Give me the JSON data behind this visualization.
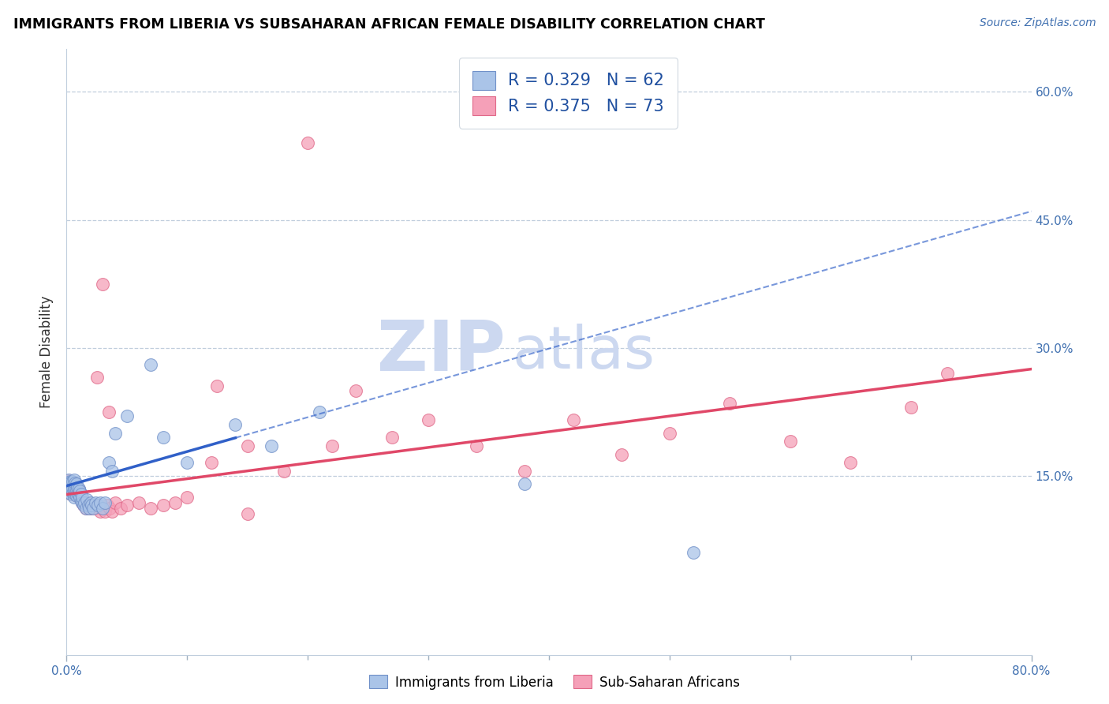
{
  "title": "IMMIGRANTS FROM LIBERIA VS SUBSAHARAN AFRICAN FEMALE DISABILITY CORRELATION CHART",
  "source": "Source: ZipAtlas.com",
  "ylabel": "Female Disability",
  "series1_label": "Immigrants from Liberia",
  "series2_label": "Sub-Saharan Africans",
  "series1_R": "0.329",
  "series1_N": "62",
  "series2_R": "0.375",
  "series2_N": "73",
  "series1_color": "#aac4e8",
  "series2_color": "#f5a0b8",
  "series1_edge_color": "#7090c8",
  "series2_edge_color": "#e06888",
  "trend1_color": "#3060c8",
  "trend2_color": "#e04868",
  "watermark_color": "#ccd8f0",
  "background_color": "#ffffff",
  "xlim": [
    0.0,
    0.8
  ],
  "ylim": [
    -0.06,
    0.65
  ],
  "ytick_vals": [
    0.15,
    0.3,
    0.45,
    0.6
  ],
  "ytick_labels": [
    "15.0%",
    "30.0%",
    "45.0%",
    "60.0%"
  ],
  "trend1_x0": 0.0,
  "trend1_y0": 0.138,
  "trend1_x1": 0.8,
  "trend1_y1": 0.46,
  "trend1_solid_end": 0.14,
  "trend2_x0": 0.0,
  "trend2_y0": 0.128,
  "trend2_x1": 0.8,
  "trend2_y1": 0.275,
  "series1_x": [
    0.001,
    0.001,
    0.001,
    0.002,
    0.002,
    0.002,
    0.002,
    0.003,
    0.003,
    0.003,
    0.004,
    0.004,
    0.004,
    0.005,
    0.005,
    0.005,
    0.006,
    0.006,
    0.006,
    0.006,
    0.007,
    0.007,
    0.007,
    0.008,
    0.008,
    0.008,
    0.009,
    0.009,
    0.01,
    0.01,
    0.011,
    0.011,
    0.012,
    0.012,
    0.013,
    0.013,
    0.014,
    0.015,
    0.016,
    0.017,
    0.018,
    0.019,
    0.02,
    0.021,
    0.022,
    0.024,
    0.026,
    0.028,
    0.03,
    0.032,
    0.035,
    0.038,
    0.04,
    0.05,
    0.07,
    0.08,
    0.1,
    0.14,
    0.17,
    0.21,
    0.38,
    0.52
  ],
  "series1_y": [
    0.135,
    0.138,
    0.142,
    0.13,
    0.135,
    0.14,
    0.145,
    0.132,
    0.138,
    0.143,
    0.128,
    0.135,
    0.142,
    0.13,
    0.136,
    0.143,
    0.125,
    0.132,
    0.138,
    0.145,
    0.128,
    0.135,
    0.141,
    0.127,
    0.133,
    0.14,
    0.129,
    0.136,
    0.128,
    0.135,
    0.125,
    0.132,
    0.12,
    0.128,
    0.118,
    0.125,
    0.115,
    0.118,
    0.112,
    0.122,
    0.115,
    0.112,
    0.118,
    0.115,
    0.112,
    0.118,
    0.115,
    0.118,
    0.112,
    0.118,
    0.165,
    0.155,
    0.2,
    0.22,
    0.28,
    0.195,
    0.165,
    0.21,
    0.185,
    0.225,
    0.14,
    0.06
  ],
  "series2_x": [
    0.001,
    0.001,
    0.002,
    0.002,
    0.002,
    0.003,
    0.003,
    0.004,
    0.004,
    0.005,
    0.005,
    0.005,
    0.006,
    0.006,
    0.007,
    0.007,
    0.008,
    0.008,
    0.009,
    0.009,
    0.01,
    0.01,
    0.011,
    0.012,
    0.013,
    0.014,
    0.015,
    0.016,
    0.017,
    0.018,
    0.019,
    0.02,
    0.021,
    0.022,
    0.024,
    0.026,
    0.028,
    0.03,
    0.032,
    0.034,
    0.036,
    0.038,
    0.04,
    0.045,
    0.05,
    0.06,
    0.07,
    0.08,
    0.09,
    0.1,
    0.12,
    0.15,
    0.18,
    0.2,
    0.24,
    0.27,
    0.3,
    0.34,
    0.38,
    0.42,
    0.46,
    0.5,
    0.55,
    0.6,
    0.65,
    0.7,
    0.73,
    0.03,
    0.025,
    0.035,
    0.22,
    0.125,
    0.15
  ],
  "series2_y": [
    0.138,
    0.142,
    0.132,
    0.138,
    0.144,
    0.13,
    0.136,
    0.128,
    0.135,
    0.13,
    0.136,
    0.142,
    0.128,
    0.135,
    0.13,
    0.136,
    0.127,
    0.133,
    0.128,
    0.135,
    0.128,
    0.134,
    0.125,
    0.122,
    0.118,
    0.115,
    0.118,
    0.112,
    0.118,
    0.115,
    0.112,
    0.115,
    0.112,
    0.115,
    0.112,
    0.115,
    0.108,
    0.112,
    0.108,
    0.115,
    0.112,
    0.108,
    0.118,
    0.112,
    0.115,
    0.118,
    0.112,
    0.115,
    0.118,
    0.125,
    0.165,
    0.185,
    0.155,
    0.54,
    0.25,
    0.195,
    0.215,
    0.185,
    0.155,
    0.215,
    0.175,
    0.2,
    0.235,
    0.19,
    0.165,
    0.23,
    0.27,
    0.375,
    0.265,
    0.225,
    0.185,
    0.255,
    0.105
  ]
}
